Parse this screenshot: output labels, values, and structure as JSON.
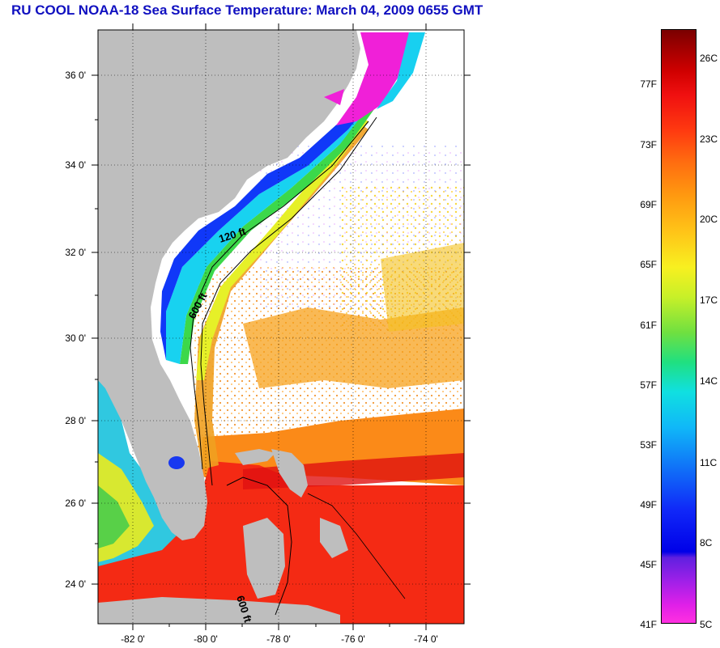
{
  "title": "RU COOL  NOAA-18  Sea Surface Temperature:  March 04, 2009 0655 GMT",
  "map": {
    "lat_labels": [
      "36 0'",
      "34 0'",
      "32 0'",
      "30 0'",
      "28 0'",
      "26 0'",
      "24 0'"
    ],
    "lon_labels": [
      "-82 0'",
      "-80 0'",
      "-78 0'",
      "-76 0'",
      "-74 0'"
    ],
    "contour_labels": [
      "120 ft",
      "600 ft",
      "600 ft"
    ],
    "colors": {
      "land": "#bebebe",
      "ocean_missing": "#ffffff",
      "contour": "#000000"
    }
  },
  "colorbar": {
    "fahrenheit_labels": [
      "77F",
      "73F",
      "69F",
      "65F",
      "61F",
      "57F",
      "53F",
      "49F",
      "45F",
      "41F"
    ],
    "celsius_labels": [
      "26C",
      "23C",
      "20C",
      "17C",
      "14C",
      "11C",
      "8C",
      "5C"
    ]
  }
}
